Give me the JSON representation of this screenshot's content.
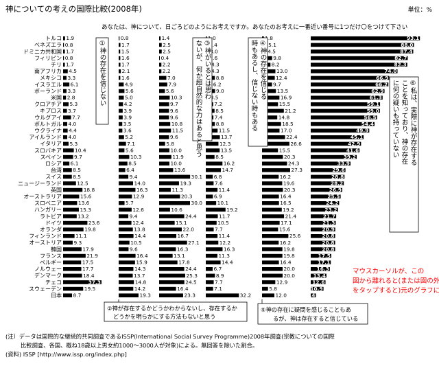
{
  "header": {
    "title": "神についての考えの国際比較(2008年)",
    "unit": "単位：%",
    "question": "あなたは、神について、日ごろどのようにお考えですか。あなたのお考えに一番近い番号に1つだけ〇をつけて下さい"
  },
  "annotations": {
    "opt1": "①神の存在を信じない",
    "opt2": "②神が存在するかどうかわからないし、存在するかどうかを明らかにする方法もないと思う",
    "opt3": "③神がいるとは思わないが、何か超自然的な力はあると思う",
    "opt4": "④神の存在を信じる時もあるし、信じない時もある",
    "opt5": "⑤神の存在に疑問を感じることもあるが、神は存在すると信じている",
    "opt6": "⑥私は、実際に神が存在することを知っており、神の存在に何の疑いも持っていない",
    "tooltip": "マウスカーソルが、この図から離れると(または図の外をタップすると)元のグラフに切り替わります"
  },
  "footnote": {
    "line1": "(注）データは国際的な継続的共同調査であるISSP(International Social Survey Programme)2008年調査(宗教についての国際",
    "line2": "比較調査、各国、概ね18歳以上男女約1000～3000人が対象)による。無回答を除いた割合。",
    "line3": "(資料) ISSP [http://www.issp.org/index.php]"
  },
  "colors": {
    "bar": "#000000",
    "tooltip": "#ff0000"
  },
  "chart_data": {
    "type": "bar",
    "layout": "small-multiples-horizontal",
    "categories": [
      "トルコ",
      "ベネズエラ",
      "ドミニカ共和国",
      "フィリピン",
      "チリ",
      "南アフリカ",
      "メキシコ",
      "イスラエル",
      "ポーランド",
      "米国",
      "クロアチア",
      "キプロス",
      "ウルグアイ",
      "ポルトガル",
      "ウクライナ",
      "アイルランド",
      "イタリア",
      "スロバキア",
      "スペイン",
      "ロシア",
      "台湾",
      "スイス",
      "ニュージーランド",
      "英国",
      "オーストラリア",
      "スロベニア",
      "ハンガリー",
      "ラトビア",
      "ドイツ",
      "オランダ",
      "フィンランド",
      "オーストリア",
      "韓国",
      "フランス",
      "ベルギー",
      "ノルウェー",
      "デンマーク",
      "チェコ",
      "スウェーデン",
      "日本"
    ],
    "series": [
      {
        "name": "①神の存在を信じない",
        "values": [
          1.9,
          0.8,
          1.7,
          0.8,
          1.7,
          4.5,
          3.3,
          6.1,
          3.3,
          2.8,
          5.3,
          3.7,
          7.7,
          4.0,
          4.4,
          4.0,
          5.3,
          10.4,
          9.7,
          6.1,
          8.5,
          8.5,
          12.5,
          18.8,
          15.6,
          13.6,
          15.3,
          13.2,
          23.6,
          19.8,
          11.1,
          9.3,
          17.9,
          21.9,
          17.5,
          17.7,
          18.4,
          37.3,
          19.5,
          8.7
        ]
      },
      {
        "name": "②神が存在するかどうかわからない",
        "values": [
          0.8,
          1.7,
          1.5,
          1.6,
          1.7,
          2.1,
          1.6,
          4.9,
          5.6,
          5.0,
          4.2,
          3.9,
          3.9,
          3.5,
          3.6,
          5.2,
          7.1,
          5.6,
          10.3,
          8.5,
          6.4,
          9.4,
          14.0,
          16.3,
          12.9,
          5.7,
          12.6,
          9.4,
          12.4,
          13.8,
          14.4,
          10.5,
          9.6,
          16.4,
          15.9,
          14.3,
          13.7,
          14.8,
          14.2,
          19.3
        ]
      },
      {
        "name": "③何か超自然的な力はある",
        "values": [
          1.4,
          2.5,
          2.5,
          0.4,
          2.2,
          2.2,
          7.0,
          7.9,
          5.6,
          10.3,
          9.7,
          9.6,
          9.6,
          10.8,
          11.5,
          9.6,
          5.8,
          10.0,
          11.9,
          10.0,
          13.6,
          30.1,
          19.3,
          11.3,
          20.3,
          30.0,
          10.6,
          24.4,
          15.1,
          22.0,
          16.7,
          27.1,
          16.3,
          13.1,
          17.8,
          24.4,
          25.3,
          24.5,
          16.4,
          23.3
        ]
      },
      {
        "name": "④信じる時もある",
        "values": [
          1.0,
          2.4,
          3.0,
          2.6,
          4.3,
          4.3,
          8.8,
          6.2,
          9.0,
          3.5,
          7.2,
          8.5,
          7.4,
          8.8,
          11.5,
          13.7,
          12.3,
          13.5,
          8.5,
          16.2,
          14.7,
          6.8,
          7.6,
          11.4,
          6.9,
          10.1,
          19.2,
          11.7,
          10.5,
          7.7,
          11.4,
          12.2,
          16.3,
          11.3,
          14.4,
          6.7,
          8.9,
          7.7,
          7.1,
          32.2
        ]
      },
      {
        "name": "⑤疑問を感じることもあるが信じている",
        "values": [
          1.8,
          5.1,
          4.5,
          9.8,
          8.2,
          13.0,
          12.4,
          9.7,
          13.5,
          16.9,
          15.5,
          21.2,
          14.8,
          18.5,
          17.0,
          22.4,
          26.6,
          15.5,
          20.3,
          24.3,
          27.3,
          16.2,
          19.6,
          20.3,
          16.4,
          16.5,
          19.2,
          21.4,
          17.1,
          15.6,
          25.6,
          16.2,
          19.8,
          19.8,
          16.4,
          20.0,
          20.0,
          12.9,
          5.8,
          12.0
        ]
      },
      {
        "name": "⑥神の存在に何の疑いも持っていない",
        "values": [
          93.1,
          88.0,
          87.4,
          82.7,
          82.3,
          74.0,
          66.9,
          66.2,
          62.9,
          61.3,
          59.1,
          59.0,
          56.5,
          54.4,
          49.9,
          45.1,
          42.9,
          41.6,
          39.2,
          33.9,
          29.6,
          28.8,
          28.2,
          26.9,
          25.5,
          24.2,
          23.2,
          21.7,
          21.3,
          20.9,
          20.8,
          20.8,
          20.8,
          17.5,
          17.1,
          16.3,
          13.4,
          12.6,
          10.9,
          4.4
        ]
      }
    ]
  }
}
